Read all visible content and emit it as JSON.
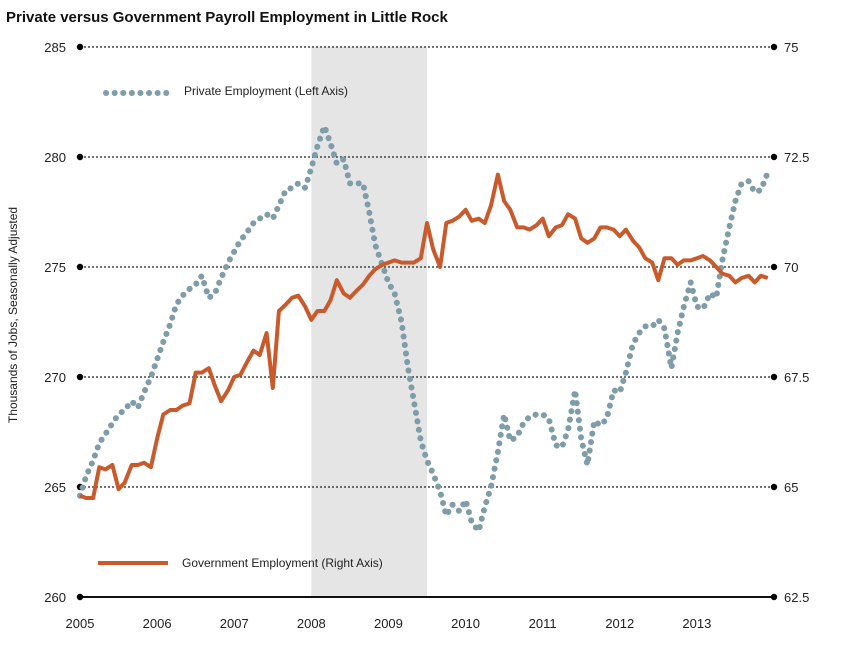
{
  "chart_data": {
    "type": "line",
    "title": "Private versus Government Payroll Employment in Little Rock",
    "ylabel": "Thousands of Jobs, Seasonally Adjusted",
    "xlim": [
      2005,
      2014
    ],
    "ylim_left": [
      260,
      285
    ],
    "ylim_right": [
      62.5,
      75
    ],
    "x_ticks": [
      "2005",
      "2006",
      "2007",
      "2008",
      "2009",
      "2010",
      "2011",
      "2012",
      "2013"
    ],
    "y_ticks_left": [
      "260",
      "265",
      "270",
      "275",
      "280",
      "285"
    ],
    "y_ticks_right": [
      "62.5",
      "65",
      "67.5",
      "70",
      "72.5",
      "75"
    ],
    "shaded_region": {
      "x_start": 2008.0,
      "x_end": 2009.5
    },
    "series": [
      {
        "name": "Private Employment (Left Axis)",
        "axis": "left",
        "color": "#7f9ca9",
        "style": "dotted",
        "points": [
          [
            2005.0,
            264.6
          ],
          [
            2005.08,
            265.5
          ],
          [
            2005.17,
            266.2
          ],
          [
            2005.25,
            267.0
          ],
          [
            2005.33,
            267.4
          ],
          [
            2005.42,
            267.9
          ],
          [
            2005.5,
            268.3
          ],
          [
            2005.58,
            268.5
          ],
          [
            2005.67,
            268.9
          ],
          [
            2005.75,
            268.6
          ],
          [
            2005.83,
            269.3
          ],
          [
            2005.92,
            270.0
          ],
          [
            2006.0,
            270.8
          ],
          [
            2006.08,
            271.6
          ],
          [
            2006.17,
            272.4
          ],
          [
            2006.25,
            273.3
          ],
          [
            2006.33,
            273.7
          ],
          [
            2006.42,
            274.0
          ],
          [
            2006.5,
            274.2
          ],
          [
            2006.58,
            274.6
          ],
          [
            2006.67,
            273.6
          ],
          [
            2006.75,
            273.8
          ],
          [
            2006.83,
            274.5
          ],
          [
            2006.92,
            275.2
          ],
          [
            2007.0,
            275.7
          ],
          [
            2007.08,
            276.2
          ],
          [
            2007.17,
            276.6
          ],
          [
            2007.25,
            277.0
          ],
          [
            2007.33,
            277.2
          ],
          [
            2007.42,
            277.4
          ],
          [
            2007.5,
            277.2
          ],
          [
            2007.58,
            277.8
          ],
          [
            2007.67,
            278.5
          ],
          [
            2007.75,
            278.6
          ],
          [
            2007.83,
            278.8
          ],
          [
            2007.92,
            278.6
          ],
          [
            2008.0,
            279.5
          ],
          [
            2008.08,
            280.5
          ],
          [
            2008.17,
            281.4
          ],
          [
            2008.25,
            280.6
          ],
          [
            2008.33,
            279.7
          ],
          [
            2008.42,
            279.9
          ],
          [
            2008.5,
            278.8
          ],
          [
            2008.58,
            278.8
          ],
          [
            2008.67,
            278.8
          ],
          [
            2008.75,
            277.5
          ],
          [
            2008.83,
            276.0
          ],
          [
            2008.92,
            275.1
          ],
          [
            2009.0,
            274.3
          ],
          [
            2009.08,
            273.8
          ],
          [
            2009.17,
            272.5
          ],
          [
            2009.25,
            270.5
          ],
          [
            2009.33,
            268.9
          ],
          [
            2009.42,
            267.1
          ],
          [
            2009.5,
            266.2
          ],
          [
            2009.58,
            265.6
          ],
          [
            2009.67,
            264.8
          ],
          [
            2009.75,
            263.7
          ],
          [
            2009.83,
            264.2
          ],
          [
            2009.92,
            263.9
          ],
          [
            2010.0,
            264.4
          ],
          [
            2010.08,
            263.4
          ],
          [
            2010.17,
            263.0
          ],
          [
            2010.25,
            264.1
          ],
          [
            2010.33,
            265.0
          ],
          [
            2010.42,
            266.6
          ],
          [
            2010.5,
            268.3
          ],
          [
            2010.58,
            267.1
          ],
          [
            2010.67,
            267.3
          ],
          [
            2010.75,
            267.9
          ],
          [
            2010.83,
            268.2
          ],
          [
            2010.92,
            268.3
          ],
          [
            2011.0,
            268.3
          ],
          [
            2011.08,
            268.1
          ],
          [
            2011.17,
            266.9
          ],
          [
            2011.25,
            266.8
          ],
          [
            2011.33,
            267.6
          ],
          [
            2011.42,
            269.4
          ],
          [
            2011.5,
            267.2
          ],
          [
            2011.58,
            266.0
          ],
          [
            2011.67,
            268.0
          ],
          [
            2011.75,
            267.8
          ],
          [
            2011.83,
            268.1
          ],
          [
            2011.92,
            269.4
          ],
          [
            2012.0,
            269.3
          ],
          [
            2012.08,
            270.2
          ],
          [
            2012.17,
            271.5
          ],
          [
            2012.25,
            272.0
          ],
          [
            2012.33,
            272.3
          ],
          [
            2012.42,
            272.3
          ],
          [
            2012.5,
            272.6
          ],
          [
            2012.58,
            272.2
          ],
          [
            2012.67,
            270.4
          ],
          [
            2012.75,
            272.0
          ],
          [
            2012.83,
            273.2
          ],
          [
            2012.92,
            274.3
          ],
          [
            2013.0,
            273.2
          ],
          [
            2013.08,
            273.1
          ],
          [
            2013.17,
            273.8
          ],
          [
            2013.25,
            273.6
          ],
          [
            2013.33,
            275.3
          ],
          [
            2013.42,
            276.8
          ],
          [
            2013.5,
            278.0
          ],
          [
            2013.58,
            278.8
          ],
          [
            2013.67,
            278.9
          ],
          [
            2013.75,
            278.4
          ],
          [
            2013.83,
            278.5
          ],
          [
            2013.92,
            279.3
          ]
        ]
      },
      {
        "name": "Government Employment (Right Axis)",
        "axis": "right",
        "color": "#c95a2c",
        "style": "solid",
        "points": [
          [
            2005.0,
            64.8
          ],
          [
            2005.08,
            64.75
          ],
          [
            2005.17,
            64.75
          ],
          [
            2005.25,
            65.45
          ],
          [
            2005.33,
            65.4
          ],
          [
            2005.42,
            65.5
          ],
          [
            2005.5,
            64.95
          ],
          [
            2005.58,
            65.1
          ],
          [
            2005.67,
            65.5
          ],
          [
            2005.75,
            65.5
          ],
          [
            2005.83,
            65.55
          ],
          [
            2005.92,
            65.45
          ],
          [
            2006.0,
            66.1
          ],
          [
            2006.08,
            66.65
          ],
          [
            2006.17,
            66.75
          ],
          [
            2006.25,
            66.75
          ],
          [
            2006.33,
            66.85
          ],
          [
            2006.42,
            66.9
          ],
          [
            2006.5,
            67.6
          ],
          [
            2006.58,
            67.6
          ],
          [
            2006.67,
            67.7
          ],
          [
            2006.75,
            67.3
          ],
          [
            2006.83,
            66.95
          ],
          [
            2006.92,
            67.2
          ],
          [
            2007.0,
            67.5
          ],
          [
            2007.08,
            67.55
          ],
          [
            2007.17,
            67.85
          ],
          [
            2007.25,
            68.1
          ],
          [
            2007.33,
            68.0
          ],
          [
            2007.42,
            68.5
          ],
          [
            2007.5,
            67.25
          ],
          [
            2007.58,
            69.0
          ],
          [
            2007.67,
            69.15
          ],
          [
            2007.75,
            69.3
          ],
          [
            2007.83,
            69.35
          ],
          [
            2007.92,
            69.1
          ],
          [
            2008.0,
            68.8
          ],
          [
            2008.08,
            69.0
          ],
          [
            2008.17,
            69.0
          ],
          [
            2008.25,
            69.25
          ],
          [
            2008.33,
            69.7
          ],
          [
            2008.42,
            69.4
          ],
          [
            2008.5,
            69.3
          ],
          [
            2008.58,
            69.45
          ],
          [
            2008.67,
            69.6
          ],
          [
            2008.75,
            69.8
          ],
          [
            2008.83,
            69.95
          ],
          [
            2008.92,
            70.05
          ],
          [
            2009.0,
            70.1
          ],
          [
            2009.08,
            70.15
          ],
          [
            2009.17,
            70.1
          ],
          [
            2009.25,
            70.1
          ],
          [
            2009.33,
            70.1
          ],
          [
            2009.42,
            70.2
          ],
          [
            2009.5,
            71.0
          ],
          [
            2009.58,
            70.4
          ],
          [
            2009.67,
            70.0
          ],
          [
            2009.75,
            71.0
          ],
          [
            2009.83,
            71.05
          ],
          [
            2009.92,
            71.15
          ],
          [
            2010.0,
            71.3
          ],
          [
            2010.08,
            71.05
          ],
          [
            2010.17,
            71.1
          ],
          [
            2010.25,
            71.0
          ],
          [
            2010.33,
            71.4
          ],
          [
            2010.42,
            72.1
          ],
          [
            2010.5,
            71.5
          ],
          [
            2010.58,
            71.3
          ],
          [
            2010.67,
            70.9
          ],
          [
            2010.75,
            70.9
          ],
          [
            2010.83,
            70.85
          ],
          [
            2010.92,
            70.95
          ],
          [
            2011.0,
            71.1
          ],
          [
            2011.08,
            70.7
          ],
          [
            2011.17,
            70.9
          ],
          [
            2011.25,
            70.95
          ],
          [
            2011.33,
            71.2
          ],
          [
            2011.42,
            71.1
          ],
          [
            2011.5,
            70.65
          ],
          [
            2011.58,
            70.55
          ],
          [
            2011.67,
            70.65
          ],
          [
            2011.75,
            70.9
          ],
          [
            2011.83,
            70.9
          ],
          [
            2011.92,
            70.85
          ],
          [
            2012.0,
            70.7
          ],
          [
            2012.08,
            70.85
          ],
          [
            2012.17,
            70.6
          ],
          [
            2012.25,
            70.45
          ],
          [
            2012.33,
            70.2
          ],
          [
            2012.42,
            70.1
          ],
          [
            2012.5,
            69.7
          ],
          [
            2012.58,
            70.2
          ],
          [
            2012.67,
            70.2
          ],
          [
            2012.75,
            70.05
          ],
          [
            2012.83,
            70.15
          ],
          [
            2012.92,
            70.15
          ],
          [
            2013.0,
            70.2
          ],
          [
            2013.08,
            70.25
          ],
          [
            2013.17,
            70.15
          ],
          [
            2013.25,
            70.0
          ],
          [
            2013.33,
            69.85
          ],
          [
            2013.42,
            69.8
          ],
          [
            2013.5,
            69.65
          ],
          [
            2013.58,
            69.75
          ],
          [
            2013.67,
            69.8
          ],
          [
            2013.75,
            69.65
          ],
          [
            2013.83,
            69.8
          ],
          [
            2013.92,
            69.75
          ]
        ]
      }
    ],
    "legend": [
      {
        "label": "Private Employment (Left Axis)",
        "placement": "top-left"
      },
      {
        "label": "Government Employment (Right Axis)",
        "placement": "bottom-left"
      }
    ]
  }
}
